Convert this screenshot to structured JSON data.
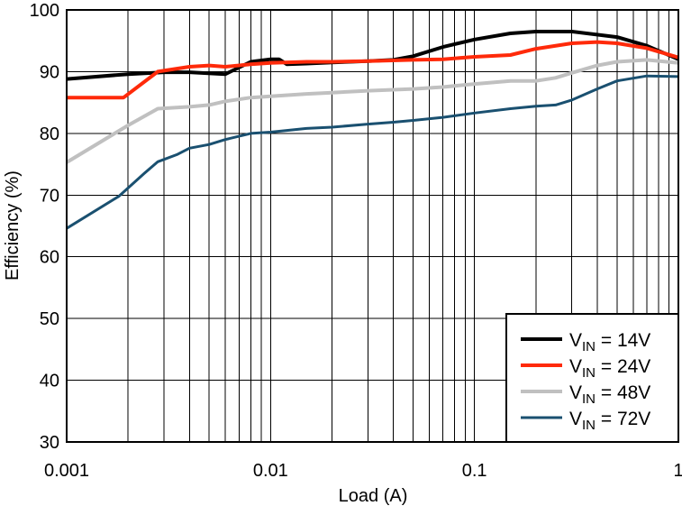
{
  "chart_data": {
    "type": "line",
    "xlabel": "Load (A)",
    "ylabel": "Efficiency (%)",
    "xscale": "log",
    "xlim": [
      0.001,
      1
    ],
    "ylim": [
      30,
      100
    ],
    "grid": true,
    "legend_position": "bottom-right",
    "x_ticks": [
      "0.001",
      "0.01",
      "0.1",
      "1"
    ],
    "y_ticks": [
      "30",
      "40",
      "50",
      "60",
      "70",
      "80",
      "90",
      "100"
    ],
    "series": [
      {
        "name": "VIN = 14V",
        "legend": {
          "v": "V",
          "sub": "IN",
          "rest": " = 14V"
        },
        "color": "#000000",
        "x": [
          0.001,
          0.002,
          0.003,
          0.004,
          0.006,
          0.008,
          0.01,
          0.011,
          0.012,
          0.015,
          0.02,
          0.03,
          0.04,
          0.05,
          0.07,
          0.1,
          0.15,
          0.2,
          0.3,
          0.5,
          0.7,
          1.0
        ],
        "y": [
          88.8,
          89.6,
          89.9,
          89.9,
          89.6,
          91.6,
          92.0,
          92.0,
          91.2,
          91.3,
          91.5,
          91.7,
          91.9,
          92.5,
          94.0,
          95.2,
          96.2,
          96.5,
          96.5,
          95.6,
          94.2,
          92.0
        ]
      },
      {
        "name": "VIN = 24V",
        "legend": {
          "v": "V",
          "sub": "IN",
          "rest": " = 24V"
        },
        "color": "#ff2a0a",
        "x": [
          0.001,
          0.0019,
          0.0028,
          0.004,
          0.005,
          0.006,
          0.008,
          0.01,
          0.015,
          0.02,
          0.03,
          0.05,
          0.07,
          0.1,
          0.15,
          0.2,
          0.3,
          0.4,
          0.5,
          0.7,
          1.0
        ],
        "y": [
          85.8,
          85.8,
          90.0,
          90.8,
          91.0,
          90.8,
          91.2,
          91.4,
          91.6,
          91.6,
          91.7,
          91.9,
          92.0,
          92.4,
          92.7,
          93.7,
          94.6,
          94.8,
          94.6,
          93.8,
          92.3
        ]
      },
      {
        "name": "VIN = 48V",
        "legend": {
          "v": "V",
          "sub": "IN",
          "rest": " = 48V"
        },
        "color": "#c0c0c0",
        "x": [
          0.001,
          0.002,
          0.0028,
          0.004,
          0.005,
          0.006,
          0.008,
          0.01,
          0.015,
          0.02,
          0.03,
          0.05,
          0.07,
          0.1,
          0.15,
          0.2,
          0.25,
          0.3,
          0.4,
          0.5,
          0.7,
          1.0
        ],
        "y": [
          75.3,
          81.3,
          84.0,
          84.3,
          84.6,
          85.2,
          85.8,
          86.0,
          86.4,
          86.6,
          86.9,
          87.2,
          87.5,
          88.0,
          88.5,
          88.5,
          89.0,
          89.8,
          91.0,
          91.6,
          91.9,
          91.4
        ]
      },
      {
        "name": "VIN = 72V",
        "legend": {
          "v": "V",
          "sub": "IN",
          "rest": " = 72V"
        },
        "color": "#1a5070",
        "x": [
          0.001,
          0.0018,
          0.0024,
          0.0028,
          0.0035,
          0.004,
          0.005,
          0.006,
          0.008,
          0.01,
          0.015,
          0.02,
          0.03,
          0.04,
          0.05,
          0.07,
          0.1,
          0.15,
          0.2,
          0.25,
          0.3,
          0.4,
          0.5,
          0.7,
          1.0
        ],
        "y": [
          64.6,
          69.8,
          73.5,
          75.4,
          76.6,
          77.6,
          78.2,
          79.0,
          80.0,
          80.2,
          80.8,
          81.0,
          81.5,
          81.8,
          82.1,
          82.6,
          83.3,
          84.0,
          84.4,
          84.6,
          85.4,
          87.2,
          88.5,
          89.3,
          89.2
        ]
      }
    ]
  }
}
